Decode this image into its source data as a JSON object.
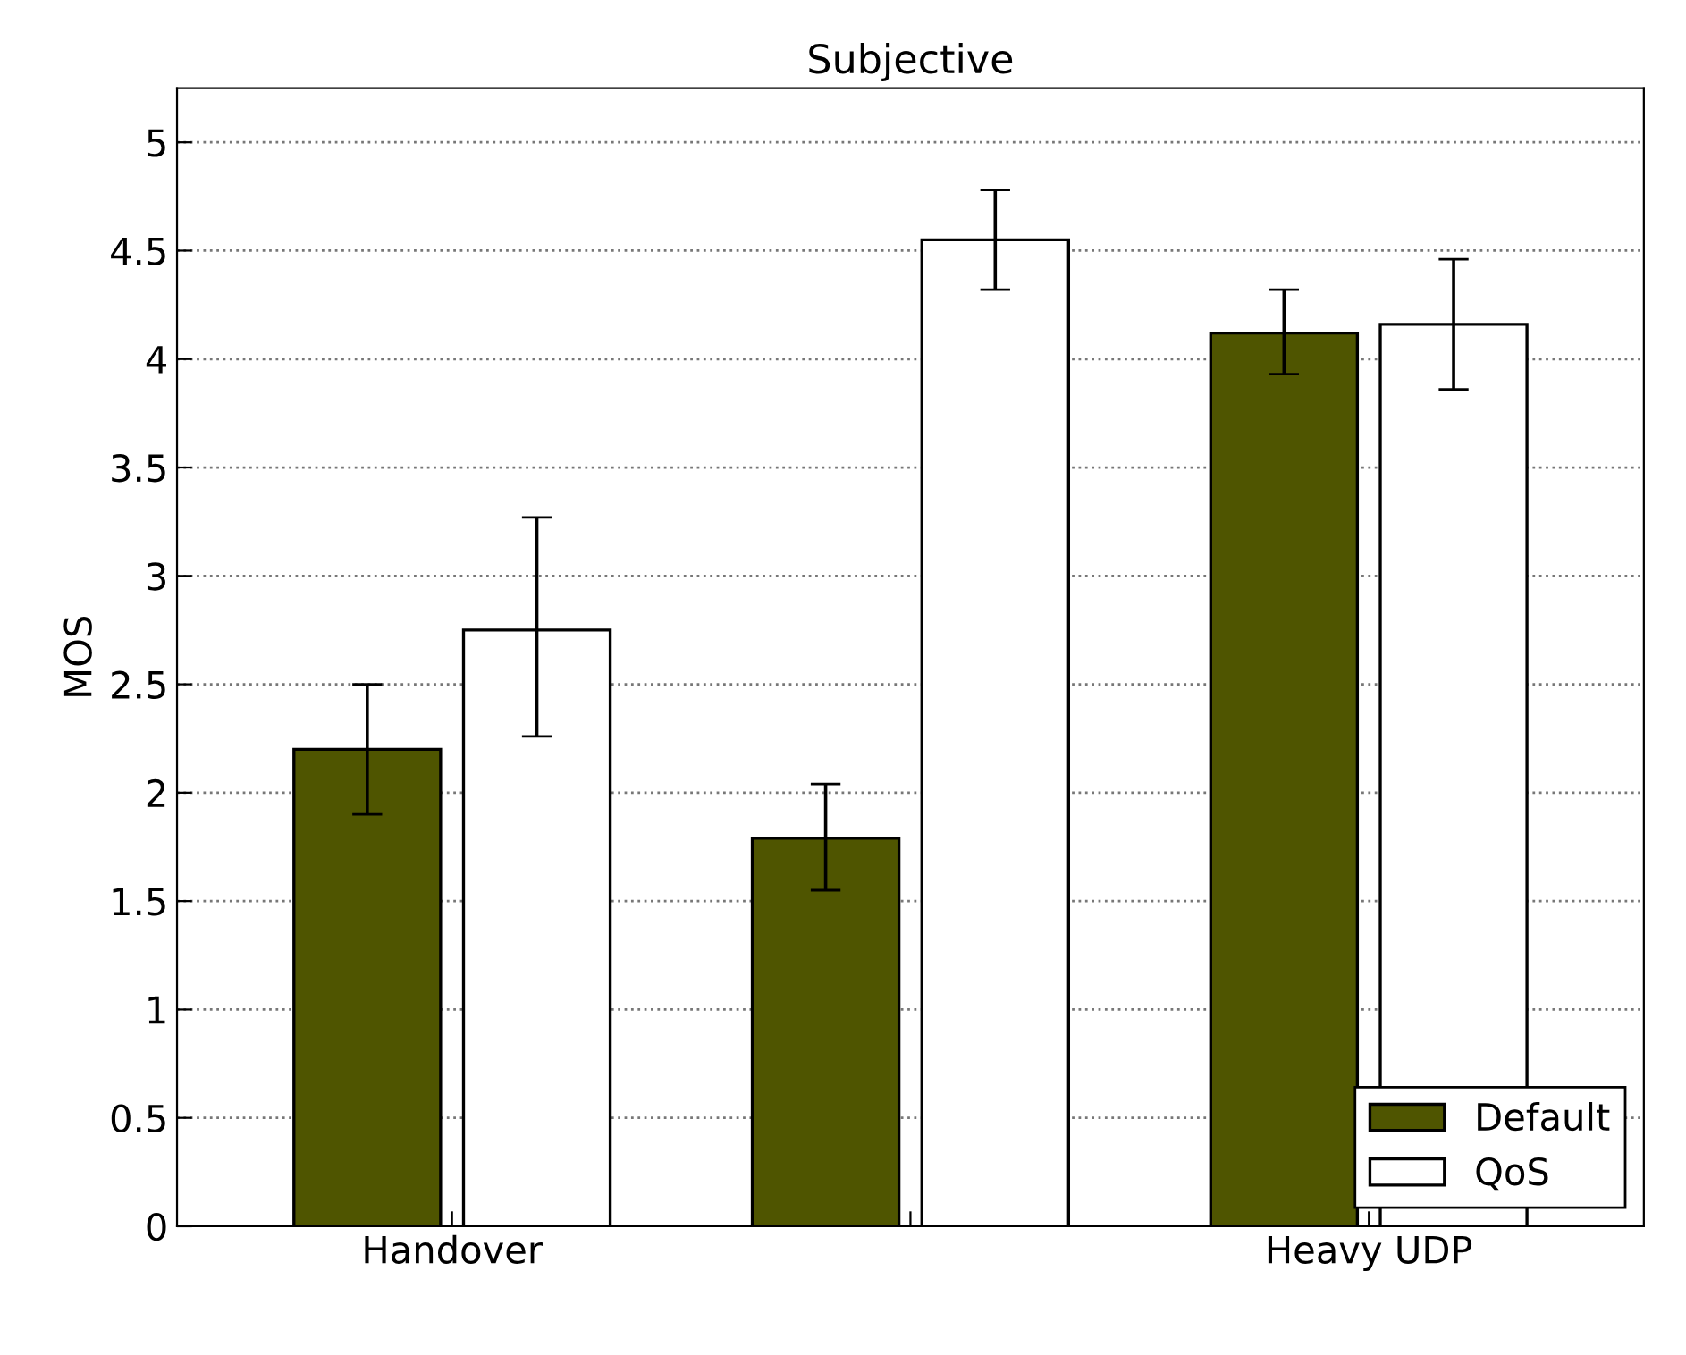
{
  "chart_data": {
    "type": "bar",
    "title": "Subjective",
    "ylabel": "MOS",
    "categories": [
      "Handover",
      null,
      "Heavy UDP"
    ],
    "series": [
      {
        "name": "Default",
        "color": "#4f5500",
        "values": [
          2.2,
          1.79,
          4.12
        ],
        "errors": [
          [
            1.9,
            2.5
          ],
          [
            1.55,
            2.04
          ],
          [
            3.93,
            4.32
          ]
        ]
      },
      {
        "name": "QoS",
        "color": "#ffffff",
        "values": [
          2.75,
          4.55,
          4.16
        ],
        "errors": [
          [
            2.26,
            3.27
          ],
          [
            4.32,
            4.78
          ],
          [
            3.86,
            4.46
          ]
        ]
      }
    ],
    "ylim": [
      0,
      5.25
    ],
    "yticks": [
      0,
      0.5,
      1,
      1.5,
      2,
      2.5,
      3,
      3.5,
      4,
      4.5,
      5
    ],
    "grid": "y",
    "legend": "bottom right"
  }
}
